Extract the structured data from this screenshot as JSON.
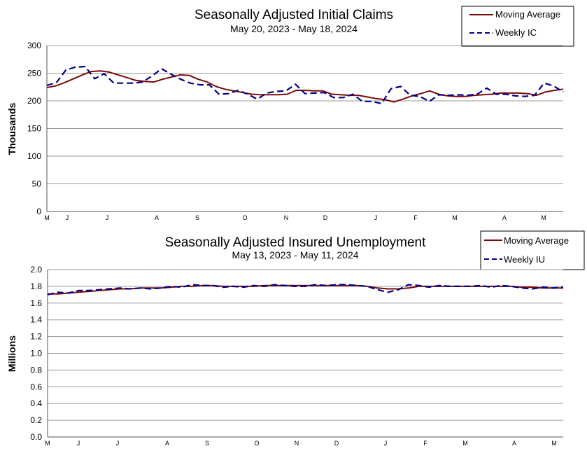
{
  "chart_data": [
    {
      "type": "line",
      "title": "Seasonally Adjusted Initial Claims",
      "subtitle": "May 20, 2023 - May 18, 2024",
      "xlabel": "",
      "ylabel": "Thousands",
      "ylim": [
        0,
        300
      ],
      "yticks": [
        "0",
        "50",
        "100",
        "150",
        "200",
        "250",
        "300"
      ],
      "month_ticks": [
        "M",
        "J",
        "J",
        "A",
        "S",
        "O",
        "N",
        "D",
        "J",
        "F",
        "M",
        "A",
        "M"
      ],
      "grid": true,
      "legend_position": "top-right",
      "colors": {
        "moving_average": "#7B0A0A",
        "weekly": "#00008B"
      },
      "series": [
        {
          "name": "Moving Average",
          "style": "solid",
          "values": [
            224,
            227,
            233,
            240,
            247,
            253,
            254,
            252,
            247,
            242,
            237,
            235,
            234,
            239,
            243,
            247,
            246,
            239,
            234,
            226,
            221,
            218,
            215,
            212,
            211,
            211,
            211,
            212,
            219,
            219,
            218,
            218,
            212,
            211,
            210,
            210,
            207,
            204,
            202,
            198,
            203,
            209,
            213,
            218,
            212,
            209,
            208,
            208,
            210,
            211,
            212,
            214,
            214,
            214,
            213,
            210,
            216,
            219,
            221
          ]
        },
        {
          "name": "Weekly IC",
          "style": "dashed",
          "values": [
            228,
            233,
            256,
            261,
            262,
            240,
            249,
            232,
            232,
            232,
            234,
            245,
            258,
            248,
            239,
            232,
            229,
            229,
            212,
            213,
            219,
            212,
            203,
            214,
            217,
            218,
            230,
            213,
            214,
            215,
            206,
            206,
            212,
            199,
            199,
            195,
            222,
            226,
            210,
            208,
            199,
            211,
            210,
            211,
            210,
            212,
            223,
            212,
            212,
            209,
            208,
            210,
            232,
            227,
            216
          ]
        }
      ]
    },
    {
      "type": "line",
      "title": "Seasonally Adjusted Insured Unemployment",
      "subtitle": "May 13, 2023 - May 11, 2024",
      "xlabel": "",
      "ylabel": "Millions",
      "ylim": [
        0,
        2.0
      ],
      "yticks": [
        "0.0",
        "0.2",
        "0.4",
        "0.6",
        "0.8",
        "1.0",
        "1.2",
        "1.4",
        "1.6",
        "1.8",
        "2.0"
      ],
      "month_ticks": [
        "M",
        "J",
        "J",
        "A",
        "S",
        "O",
        "N",
        "D",
        "J",
        "F",
        "M",
        "A",
        "M"
      ],
      "grid": true,
      "legend_position": "top-right",
      "colors": {
        "moving_average": "#7B0A0A",
        "weekly": "#00008B"
      },
      "series": [
        {
          "name": "Moving Average",
          "style": "solid",
          "values": [
            1.71,
            1.71,
            1.72,
            1.73,
            1.74,
            1.75,
            1.76,
            1.77,
            1.77,
            1.78,
            1.78,
            1.78,
            1.79,
            1.8,
            1.8,
            1.81,
            1.81,
            1.8,
            1.8,
            1.8,
            1.8,
            1.81,
            1.81,
            1.81,
            1.81,
            1.81,
            1.81,
            1.81,
            1.81,
            1.81,
            1.81,
            1.8,
            1.78,
            1.77,
            1.77,
            1.78,
            1.8,
            1.8,
            1.8,
            1.8,
            1.8,
            1.8,
            1.8,
            1.8,
            1.8,
            1.8,
            1.79,
            1.79,
            1.78,
            1.78,
            1.78
          ]
        },
        {
          "name": "Weekly IU",
          "style": "dashed",
          "values": [
            1.7,
            1.73,
            1.72,
            1.75,
            1.75,
            1.76,
            1.77,
            1.78,
            1.77,
            1.78,
            1.77,
            1.78,
            1.8,
            1.79,
            1.82,
            1.81,
            1.81,
            1.79,
            1.8,
            1.79,
            1.81,
            1.8,
            1.82,
            1.81,
            1.8,
            1.8,
            1.82,
            1.81,
            1.82,
            1.82,
            1.81,
            1.8,
            1.76,
            1.73,
            1.76,
            1.82,
            1.81,
            1.79,
            1.81,
            1.8,
            1.8,
            1.8,
            1.81,
            1.79,
            1.81,
            1.8,
            1.78,
            1.77,
            1.79,
            1.78,
            1.79
          ]
        }
      ]
    }
  ]
}
